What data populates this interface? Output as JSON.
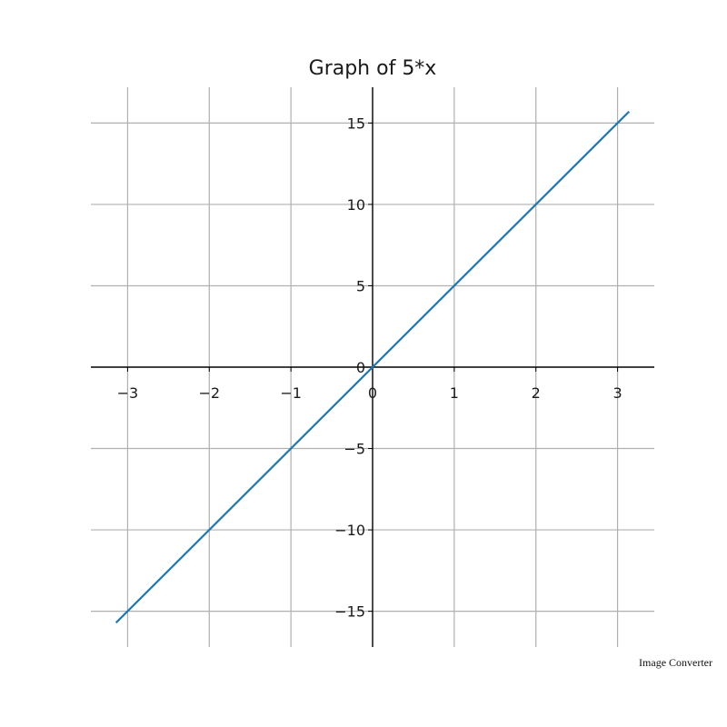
{
  "chart_data": {
    "type": "line",
    "title": "Graph of 5*x",
    "xlabel": "",
    "ylabel": "",
    "xlim": [
      -3.45,
      3.45
    ],
    "ylim": [
      -17.2,
      17.2
    ],
    "grid": true,
    "x_ticks": [
      -3,
      -2,
      -1,
      0,
      1,
      2,
      3
    ],
    "x_tick_labels": [
      "−3",
      "−2",
      "−1",
      "0",
      "1",
      "2",
      "3"
    ],
    "y_ticks": [
      -15,
      -10,
      -5,
      0,
      5,
      10,
      15
    ],
    "y_tick_labels": [
      "−15",
      "−10",
      "−5",
      "0",
      "5",
      "10",
      "15"
    ],
    "series": [
      {
        "color": "#1f77b4",
        "x": [
          -3.14159,
          3.14159
        ],
        "y": [
          -15.708,
          15.708
        ]
      }
    ]
  },
  "watermark": "Image Converter"
}
